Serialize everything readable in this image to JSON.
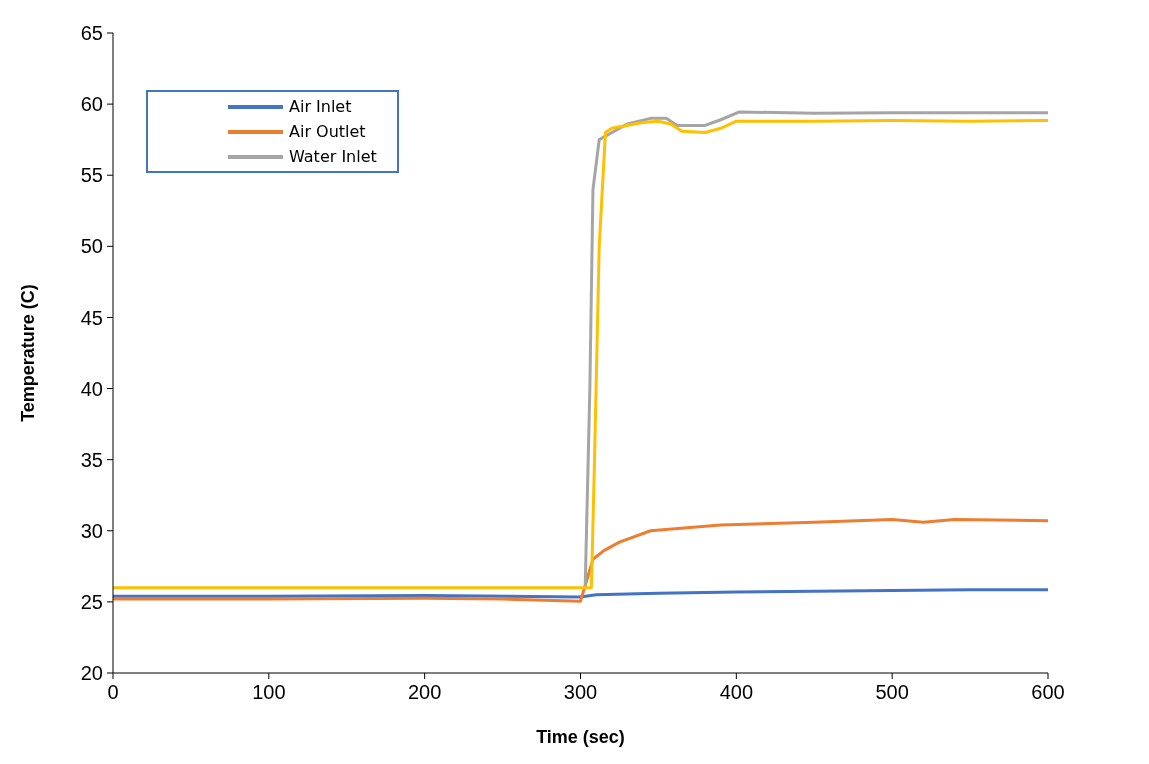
{
  "chart_data": {
    "type": "line",
    "xlabel": "Time (sec)",
    "ylabel": "Temperature (C)",
    "xlim": [
      0,
      600
    ],
    "xticks": [
      0,
      100,
      200,
      300,
      400,
      500,
      600
    ],
    "ylim": [
      20,
      65
    ],
    "yticks": [
      20,
      25,
      30,
      35,
      40,
      45,
      50,
      55,
      60,
      65
    ],
    "grid": false,
    "legend": "top left",
    "marker": "none",
    "line_style": "solid",
    "series": [
      {
        "name": "Air Inlet",
        "color": "#4472c4",
        "x": [
          0,
          100,
          200,
          300,
          310,
          350,
          400,
          450,
          500,
          550,
          600
        ],
        "values": [
          25.4,
          25.4,
          25.45,
          25.35,
          25.5,
          25.6,
          25.7,
          25.75,
          25.8,
          25.85,
          25.85
        ]
      },
      {
        "name": "Air Outlet",
        "color": "#ed7d31",
        "x": [
          0,
          100,
          200,
          250,
          300,
          304,
          308,
          315,
          325,
          345,
          390,
          450,
          500,
          520,
          540,
          600
        ],
        "values": [
          25.2,
          25.2,
          25.25,
          25.2,
          25.05,
          26.5,
          28,
          28.6,
          29.2,
          30,
          30.4,
          30.6,
          30.8,
          30.6,
          30.8,
          30.7
        ]
      },
      {
        "name": "Water Inlet",
        "color": "#a5a5a5",
        "x": [
          303,
          306,
          308,
          312,
          330,
          345,
          355,
          362,
          380,
          390,
          402,
          450,
          500,
          550,
          600
        ],
        "values": [
          26,
          40,
          54,
          57.5,
          58.6,
          59,
          59,
          58.5,
          58.5,
          58.9,
          59.45,
          59.35,
          59.4,
          59.4,
          59.4
        ]
      },
      {
        "color": "#ffc000",
        "x": [
          0,
          100,
          200,
          300,
          307,
          309,
          312,
          316,
          320,
          340,
          350,
          358,
          365,
          380,
          390,
          400,
          450,
          500,
          550,
          600
        ],
        "values": [
          26,
          26,
          26,
          26,
          26,
          35,
          50,
          58,
          58.3,
          58.7,
          58.8,
          58.6,
          58.1,
          58,
          58.3,
          58.8,
          58.8,
          58.85,
          58.8,
          58.85
        ]
      }
    ]
  }
}
